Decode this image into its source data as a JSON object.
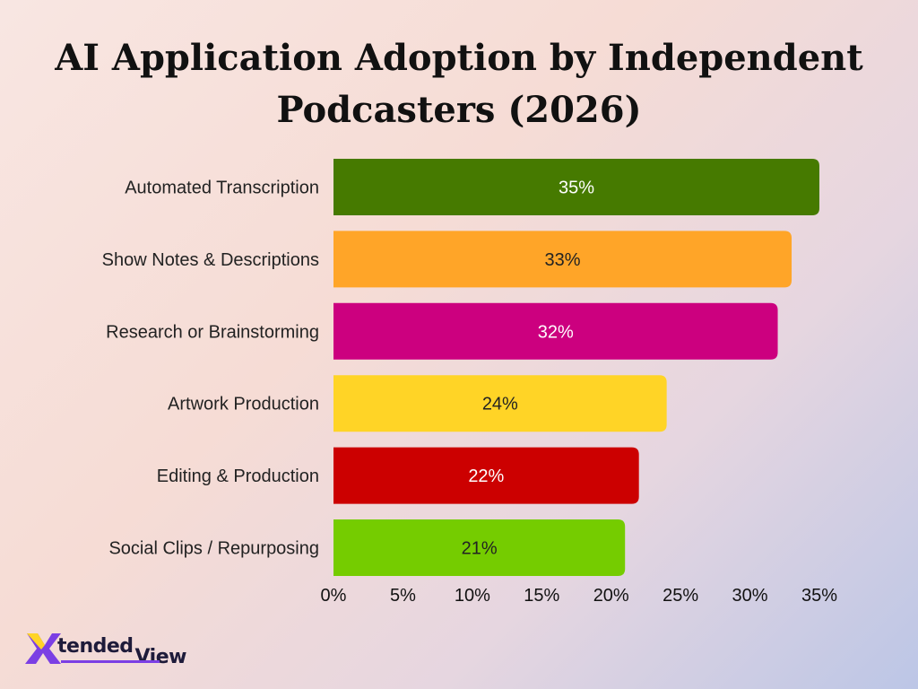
{
  "chart_data": {
    "type": "bar",
    "orientation": "horizontal",
    "title_lines": [
      "AI Application Adoption by Independent",
      "Podcasters (2026)"
    ],
    "categories": [
      "Automated Transcription",
      "Show Notes & Descriptions",
      "Research or Brainstorming",
      "Artwork Production",
      "Editing & Production",
      "Social Clips / Repurposing"
    ],
    "values": [
      35,
      33,
      32,
      24,
      22,
      21
    ],
    "value_labels": [
      "35%",
      "33%",
      "32%",
      "24%",
      "22%",
      "21%"
    ],
    "bar_colors": [
      "#467a00",
      "#ffa528",
      "#cc007f",
      "#ffd426",
      "#cc0000",
      "#75cc00"
    ],
    "label_colors": [
      "#ffffff",
      "#222222",
      "#ffffff",
      "#222222",
      "#ffffff",
      "#222222"
    ],
    "xlim": [
      0,
      35
    ],
    "x_ticks": [
      0,
      5,
      10,
      15,
      20,
      25,
      30,
      35
    ],
    "x_tick_labels": [
      "0%",
      "5%",
      "10%",
      "15%",
      "20%",
      "25%",
      "30%",
      "35%"
    ],
    "grid": false,
    "legend": "none"
  },
  "logo": {
    "mark": "X",
    "text_top": "tended",
    "text_bottom": "View"
  }
}
